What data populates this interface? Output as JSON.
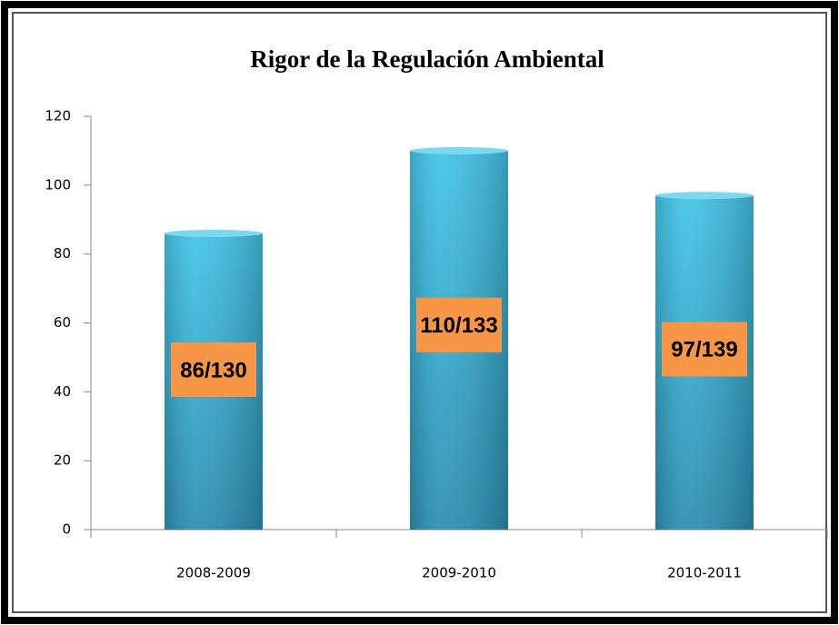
{
  "chart_data": {
    "type": "bar",
    "title": "Rigor de la Regulación Ambiental",
    "categories": [
      "2008-2009",
      "2009-2010",
      "2010-2011"
    ],
    "values": [
      86,
      110,
      97
    ],
    "value_labels": [
      "86/130",
      "110/133",
      "97/139"
    ],
    "color": "#3bbbdf",
    "label_color": "#f79646",
    "ylim": [
      0,
      120
    ],
    "yticks": [
      0,
      20,
      40,
      60,
      80,
      100,
      120
    ],
    "grid": false
  }
}
